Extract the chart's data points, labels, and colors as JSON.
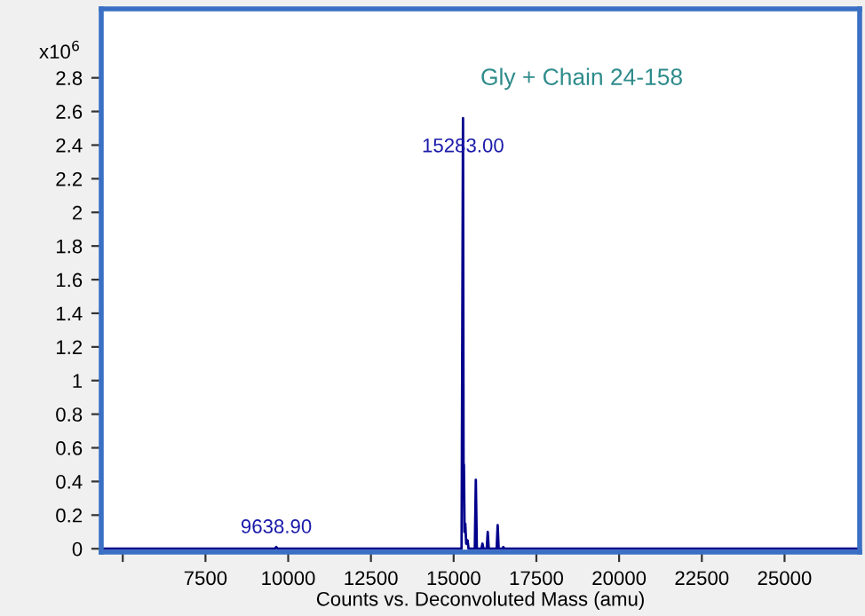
{
  "chart_data": {
    "type": "line",
    "xlabel": "Counts vs. Deconvoluted Mass (amu)",
    "annotations": [
      "x10$^{6}$",
      "Gly + Chain 24-158",
      {
        "text": "15283.00",
        "x": 15283,
        "y": 2.56
      },
      {
        "text": "9638.90",
        "x": 9638.9,
        "y": 0.01
      }
    ],
    "series": [
      {
        "color": "#00008b",
        "x": [
          4400,
          9600,
          9638.9,
          9680,
          15240,
          15283,
          15300,
          15310,
          15330,
          15350,
          15380,
          15420,
          15450,
          15640,
          15670,
          15700,
          15840,
          15870,
          15900,
          16000,
          16030,
          16060,
          16300,
          16330,
          16360,
          16480,
          16500,
          16530,
          27200
        ],
        "values": [
          0,
          0,
          0.01,
          0,
          0,
          2.56,
          0.3,
          0.5,
          0.1,
          0.15,
          0.03,
          0.05,
          0,
          0,
          0.41,
          0,
          0,
          0.03,
          0,
          0,
          0.1,
          0,
          0,
          0.14,
          0,
          0,
          0.01,
          0,
          0
        ]
      }
    ],
    "xlim": [
      4350,
      27270
    ],
    "ylim": [
      -0.02,
      3.21
    ],
    "xticks": [
      {
        "value": 5000,
        "label": null
      },
      7500,
      10000,
      12500,
      15000,
      17500,
      20000,
      22500,
      25000
    ],
    "yticks": [
      0,
      0.2,
      0.4,
      0.6,
      0.8,
      1,
      1.2,
      1.4,
      1.6,
      1.8,
      2,
      2.2,
      2.4,
      2.6,
      2.8
    ],
    "grid": false,
    "legend": false
  }
}
